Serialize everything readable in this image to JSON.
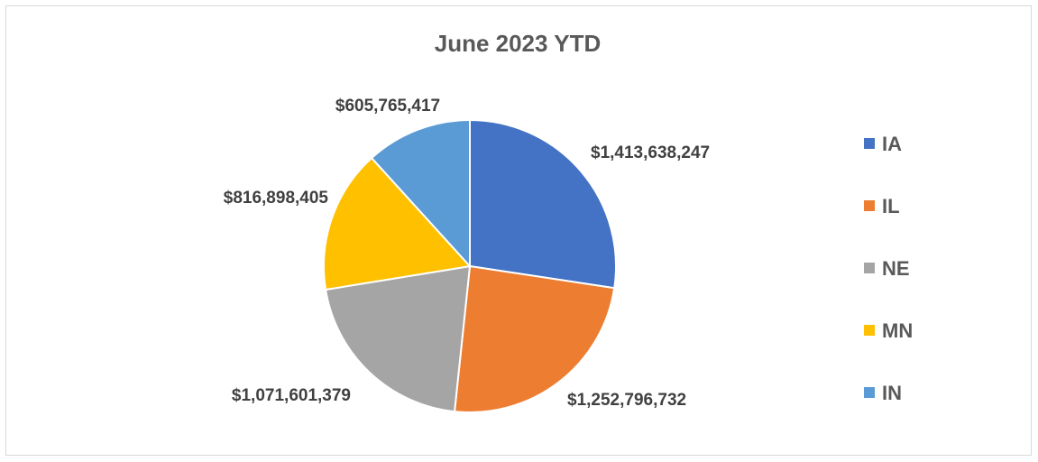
{
  "chart_data": {
    "type": "pie",
    "title": "June 2023 YTD",
    "categories": [
      "IA",
      "IL",
      "NE",
      "MN",
      "IN"
    ],
    "values": [
      1413638247,
      1252796732,
      1071601379,
      816898405,
      605765417
    ],
    "data_labels": [
      "$1,413,638,247",
      "$1,252,796,732",
      "$1,071,601,379",
      "$816,898,405",
      "$605,765,417"
    ],
    "colors": [
      "#4472C4",
      "#ED7D31",
      "#A5A5A5",
      "#FFC000",
      "#5B9BD5"
    ],
    "legend": {
      "position": "right",
      "entries": [
        "IA",
        "IL",
        "NE",
        "MN",
        "IN"
      ]
    },
    "start_angle_deg": 0,
    "direction": "clockwise"
  }
}
